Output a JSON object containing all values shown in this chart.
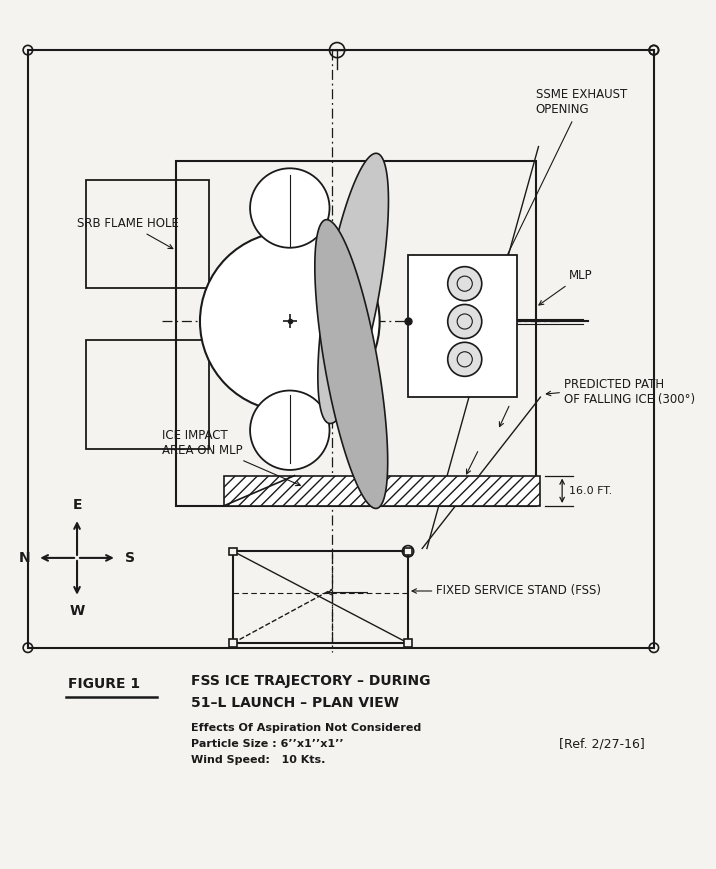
{
  "bg_color": "#f5f3ef",
  "line_color": "#1a1a1a",
  "title_fig": "FIGURE 1",
  "title_main1": "FSS ICE TRAJECTORY – DURING",
  "title_main2": "51–L LAUNCH – PLAN VIEW",
  "sub1": "Effects Of Aspiration Not Considered",
  "sub2": "Particle Size : 6’’x1’’x1’’",
  "sub3": "Wind Speed:   10 Kts.",
  "ref_text": "[Ref. 2/27-16]",
  "label_srb": "SRB FLAME HOLE",
  "label_ssme": "SSME EXHAUST\nOPENING",
  "label_mlp": "MLP",
  "label_predicted": "PREDICTED PATH\nOF FALLING ICE (300°)",
  "label_ice": "ICE IMPACT\nAREA ON MLP",
  "label_16ft": "16.0 FT.",
  "label_fss": "FIXED SERVICE STAND (FSS)"
}
